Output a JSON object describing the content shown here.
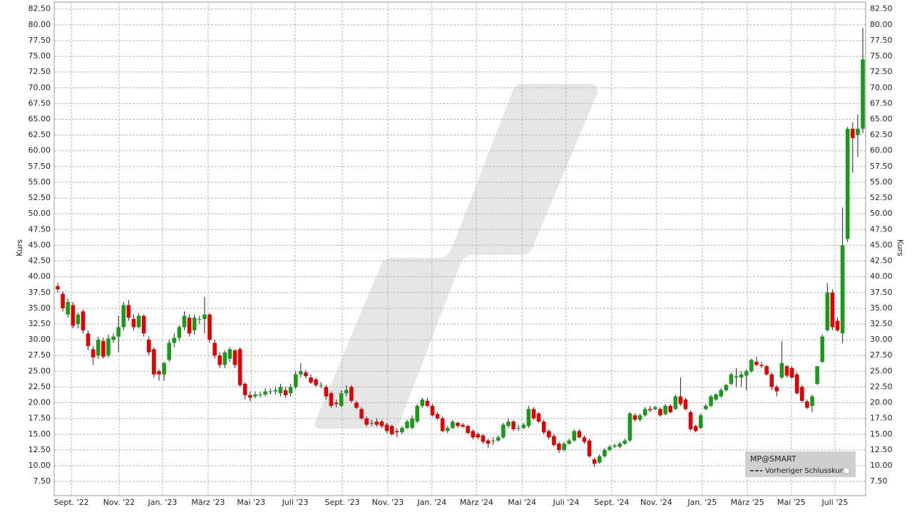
{
  "chart_data": {
    "type": "candlestick",
    "y_label": "Kurs",
    "y2_label": "Kurs",
    "legend": {
      "position": "lower right",
      "items": [
        "MP@SMART",
        "Vorheriger Schlusskurs"
      ]
    },
    "up_color": "#1a9a1a",
    "down_color": "#e00000",
    "grid": true,
    "xlim": [
      -0.7,
      159.56
    ],
    "xticks": [
      {
        "value": 2.7,
        "label": "Sept. '22"
      },
      {
        "value": 12.1,
        "label": "Nov. '22"
      },
      {
        "value": 20.7,
        "label": "Jan. '23"
      },
      {
        "value": 29.7,
        "label": "März '23"
      },
      {
        "value": 38.2,
        "label": "Mai '23"
      },
      {
        "value": 46.9,
        "label": "Juli '23"
      },
      {
        "value": 56.2,
        "label": "Sept. '23"
      },
      {
        "value": 65.2,
        "label": "Nov. '23"
      },
      {
        "value": 73.9,
        "label": "Jan. '24"
      },
      {
        "value": 82.7,
        "label": "März '24"
      },
      {
        "value": 91.7,
        "label": "Mai '24"
      },
      {
        "value": 100.4,
        "label": "Juli '24"
      },
      {
        "value": 109.4,
        "label": "Sept. '24"
      },
      {
        "value": 118.2,
        "label": "Nov. '24"
      },
      {
        "value": 127.3,
        "label": "Jan. '25"
      },
      {
        "value": 136.2,
        "label": "März '25"
      },
      {
        "value": 144.9,
        "label": "Mai '25"
      },
      {
        "value": 153.5,
        "label": "Juli '25"
      }
    ],
    "ylim": [
      5.25,
      83.6
    ],
    "yticks": [
      {
        "value": 7.5,
        "label": "7.50"
      },
      {
        "value": 10,
        "label": "10.00"
      },
      {
        "value": 12.5,
        "label": "12.50"
      },
      {
        "value": 15,
        "label": "15.00"
      },
      {
        "value": 17.5,
        "label": "17.50"
      },
      {
        "value": 20,
        "label": "20.00"
      },
      {
        "value": 22.5,
        "label": "22.50"
      },
      {
        "value": 25,
        "label": "25.00"
      },
      {
        "value": 27.5,
        "label": "27.50"
      },
      {
        "value": 30,
        "label": "30.00"
      },
      {
        "value": 32.5,
        "label": "32.50"
      },
      {
        "value": 35,
        "label": "35.00"
      },
      {
        "value": 37.5,
        "label": "37.50"
      },
      {
        "value": 40,
        "label": "40.00"
      },
      {
        "value": 42.5,
        "label": "42.50"
      },
      {
        "value": 45,
        "label": "45.00"
      },
      {
        "value": 47.5,
        "label": "47.50"
      },
      {
        "value": 50,
        "label": "50.00"
      },
      {
        "value": 52.5,
        "label": "52.50"
      },
      {
        "value": 55,
        "label": "55.00"
      },
      {
        "value": 57.5,
        "label": "57.50"
      },
      {
        "value": 60,
        "label": "60.00"
      },
      {
        "value": 62.5,
        "label": "62.50"
      },
      {
        "value": 65,
        "label": "65.00"
      },
      {
        "value": 67.5,
        "label": "67.50"
      },
      {
        "value": 70,
        "label": "70.00"
      },
      {
        "value": 72.5,
        "label": "72.50"
      },
      {
        "value": 75,
        "label": "75.00"
      },
      {
        "value": 77.5,
        "label": "77.50"
      },
      {
        "value": 80,
        "label": "80.00"
      },
      {
        "value": 82.5,
        "label": "82.50"
      }
    ],
    "ohlc": [
      [
        38.5,
        39,
        37.5,
        38
      ],
      [
        37.3,
        37.7,
        34.5,
        35
      ],
      [
        34,
        36.5,
        33.5,
        36
      ],
      [
        35.5,
        36,
        31.8,
        32.2
      ],
      [
        32.5,
        34.3,
        31.8,
        34
      ],
      [
        34.5,
        34.8,
        31,
        31.5
      ],
      [
        31,
        31.5,
        28.3,
        29
      ],
      [
        28.5,
        29,
        26,
        27.2
      ],
      [
        27.5,
        30.5,
        27,
        30
      ],
      [
        29.8,
        30.3,
        27,
        27.3
      ],
      [
        27.5,
        30.8,
        27.2,
        30.2
      ],
      [
        30,
        31,
        29.5,
        30.5
      ],
      [
        30.5,
        33.8,
        28,
        32
      ],
      [
        32,
        36,
        31.5,
        35.5
      ],
      [
        35.5,
        36.3,
        33,
        33.5
      ],
      [
        33.3,
        34,
        31.5,
        32
      ],
      [
        32,
        34.2,
        31.8,
        33.8
      ],
      [
        33.8,
        34,
        30.5,
        31
      ],
      [
        30,
        30.5,
        27.5,
        28
      ],
      [
        28.5,
        28.8,
        24,
        24.5
      ],
      [
        25,
        25.3,
        23.5,
        24.5
      ],
      [
        24.5,
        26.5,
        23.5,
        26.3
      ],
      [
        26.8,
        30,
        26.5,
        29.5
      ],
      [
        29.5,
        31,
        28.8,
        30.3
      ],
      [
        30.3,
        32.3,
        29.8,
        32
      ],
      [
        32,
        34.5,
        31.5,
        33.8
      ],
      [
        33.5,
        34,
        30.5,
        31
      ],
      [
        31.5,
        34,
        30.8,
        33.5
      ],
      [
        33.3,
        33.8,
        32.5,
        33.3
      ],
      [
        33.3,
        36.8,
        31,
        34
      ],
      [
        34,
        34.2,
        29.5,
        30
      ],
      [
        29.5,
        30,
        27,
        27.5
      ],
      [
        27.5,
        28,
        25.5,
        26
      ],
      [
        26,
        28.3,
        25.5,
        28
      ],
      [
        27,
        28.8,
        26.5,
        28.5
      ],
      [
        28.3,
        28.5,
        25.5,
        26
      ],
      [
        28.5,
        28.8,
        22.5,
        22.8
      ],
      [
        23,
        23.3,
        20.5,
        21.2
      ],
      [
        21.2,
        21.8,
        20.2,
        20.8
      ],
      [
        21,
        21.8,
        20.7,
        21.3
      ],
      [
        21.3,
        21.8,
        20.8,
        21.3
      ],
      [
        21.3,
        22.3,
        21,
        21.8
      ],
      [
        21.8,
        22.3,
        21.3,
        21.8
      ],
      [
        21.8,
        22.5,
        21.3,
        22
      ],
      [
        21.5,
        23,
        21,
        22.5
      ],
      [
        22,
        22.5,
        20.8,
        21.2
      ],
      [
        21.5,
        23,
        21,
        22.5
      ],
      [
        22.5,
        25,
        22.2,
        24.5
      ],
      [
        24.5,
        26.3,
        24,
        25
      ],
      [
        24.8,
        25.2,
        23.8,
        24.2
      ],
      [
        24,
        24.5,
        23,
        23.2
      ],
      [
        23.7,
        24,
        22.5,
        22.8
      ],
      [
        22.8,
        23.3,
        22.3,
        22.8
      ],
      [
        22.5,
        22.8,
        20.5,
        21
      ],
      [
        21.5,
        21.8,
        19.2,
        19.5
      ],
      [
        20,
        20.5,
        19.3,
        19.8
      ],
      [
        19.5,
        22,
        19.3,
        21.5
      ],
      [
        21.5,
        22.8,
        21,
        22
      ],
      [
        22.5,
        22.8,
        20,
        20.3
      ],
      [
        20,
        20.3,
        19,
        19.2
      ],
      [
        19,
        19.3,
        17.3,
        17.5
      ],
      [
        17.5,
        17.8,
        16.2,
        16.5
      ],
      [
        16.8,
        17.3,
        16.3,
        16.8
      ],
      [
        17,
        17.5,
        16.2,
        16.5
      ],
      [
        17,
        17.3,
        16,
        16.3
      ],
      [
        16.5,
        16.8,
        15.2,
        15.5
      ],
      [
        16.3,
        16.5,
        14.8,
        15
      ],
      [
        15.5,
        16,
        14.5,
        15.3
      ],
      [
        15.3,
        16.3,
        15,
        16
      ],
      [
        16,
        17.3,
        15.8,
        17
      ],
      [
        16,
        18,
        15.8,
        17.5
      ],
      [
        17,
        19.8,
        16.8,
        19.5
      ],
      [
        19.5,
        20.8,
        19.2,
        20.5
      ],
      [
        20.3,
        20.8,
        19.3,
        19.5
      ],
      [
        19.5,
        19.8,
        17.8,
        18
      ],
      [
        18.2,
        18.5,
        17.3,
        17.5
      ],
      [
        17.5,
        17.8,
        15.3,
        15.5
      ],
      [
        15.5,
        16.3,
        15.2,
        16
      ],
      [
        16,
        17.3,
        15.8,
        17
      ],
      [
        16.8,
        17,
        16,
        16.3
      ],
      [
        16.5,
        16.8,
        16,
        16.2
      ],
      [
        16.3,
        16.5,
        15,
        15.2
      ],
      [
        15.5,
        15.8,
        14.2,
        14.5
      ],
      [
        15,
        15.3,
        14.2,
        14.5
      ],
      [
        14.8,
        15,
        13.5,
        13.8
      ],
      [
        14,
        14.3,
        12.8,
        13.5
      ],
      [
        14,
        14.5,
        13.3,
        14
      ],
      [
        14,
        14.8,
        13.8,
        14.5
      ],
      [
        14.5,
        16.8,
        14.3,
        16.5
      ],
      [
        16.3,
        17.5,
        16,
        17
      ],
      [
        17,
        17.3,
        15.5,
        15.8
      ],
      [
        16,
        16.5,
        15.5,
        16
      ],
      [
        16,
        16.8,
        15.8,
        16.5
      ],
      [
        16.3,
        19.5,
        16,
        19
      ],
      [
        19,
        19.3,
        17.3,
        17.5
      ],
      [
        18.3,
        18.5,
        16.8,
        17
      ],
      [
        17,
        17.3,
        15,
        15.3
      ],
      [
        15.5,
        15.8,
        14.2,
        14.5
      ],
      [
        14.7,
        15,
        13,
        13.3
      ],
      [
        13.5,
        13.8,
        12,
        12.5
      ],
      [
        12.5,
        13.8,
        12.3,
        13.5
      ],
      [
        13.5,
        14.3,
        13.3,
        14
      ],
      [
        14,
        15.8,
        13.8,
        15.5
      ],
      [
        15.5,
        15.8,
        14.3,
        14.5
      ],
      [
        14.5,
        14.8,
        13.5,
        13.8
      ],
      [
        14,
        14.3,
        11.3,
        11.5
      ],
      [
        11,
        11.3,
        9.8,
        10.3
      ],
      [
        10.5,
        11.8,
        10.3,
        11.5
      ],
      [
        11.5,
        12.8,
        11.3,
        12.5
      ],
      [
        12.5,
        13.3,
        12.3,
        13
      ],
      [
        13,
        13.5,
        12.8,
        13.2
      ],
      [
        13,
        13.8,
        12.8,
        13.5
      ],
      [
        13.5,
        14.3,
        13.3,
        14
      ],
      [
        14,
        18.5,
        13.8,
        18.3
      ],
      [
        18,
        18.3,
        17,
        17.3
      ],
      [
        17.3,
        18.3,
        17,
        18
      ],
      [
        18,
        19.3,
        17.8,
        19
      ],
      [
        19,
        19.5,
        18.5,
        18.8
      ],
      [
        19,
        19.5,
        18.8,
        19.3
      ],
      [
        19,
        19.3,
        17.8,
        18
      ],
      [
        18.2,
        19.8,
        18,
        19.5
      ],
      [
        19.5,
        19.8,
        18.3,
        18.5
      ],
      [
        19,
        21.3,
        18.8,
        21
      ],
      [
        21,
        24,
        19.5,
        19.8
      ],
      [
        20.5,
        20.8,
        18.8,
        19
      ],
      [
        18.5,
        18.8,
        15.5,
        15.8
      ],
      [
        16.3,
        16.5,
        15.3,
        15.5
      ],
      [
        16,
        18.3,
        15.8,
        18
      ],
      [
        19,
        19.8,
        18.8,
        19.5
      ],
      [
        19.5,
        21.3,
        19.3,
        21
      ],
      [
        20.5,
        21.5,
        20.3,
        21.3
      ],
      [
        21,
        22.3,
        20.8,
        22
      ],
      [
        22,
        23,
        21.8,
        22.8
      ],
      [
        23,
        24.8,
        22.8,
        24.5
      ],
      [
        24,
        25.5,
        22.5,
        24.2
      ],
      [
        24,
        25,
        22.5,
        24.5
      ],
      [
        24.3,
        25.3,
        22,
        25
      ],
      [
        25,
        27,
        24.8,
        26.8
      ],
      [
        26.5,
        27.3,
        25.8,
        26
      ],
      [
        26,
        26.5,
        25.5,
        25.8
      ],
      [
        25.8,
        26,
        24.3,
        24.5
      ],
      [
        24.5,
        24.8,
        22,
        22.5
      ],
      [
        22.5,
        22.8,
        21,
        21.8
      ],
      [
        24,
        29.8,
        23.8,
        26.3
      ],
      [
        25.8,
        26,
        24,
        24.3
      ],
      [
        25.5,
        25.8,
        23.8,
        24
      ],
      [
        24.5,
        24.8,
        21.3,
        21.5
      ],
      [
        22.5,
        22.8,
        20,
        20.3
      ],
      [
        20.2,
        20.5,
        19,
        19.2
      ],
      [
        19.5,
        21.3,
        18.5,
        21
      ],
      [
        23,
        25.8,
        22.8,
        25.8
      ],
      [
        26.5,
        30.8,
        26.3,
        30.5
      ],
      [
        31.5,
        39,
        31.3,
        37.5
      ],
      [
        37.5,
        38,
        31.5,
        32
      ],
      [
        33,
        33.5,
        31.3,
        31.5
      ],
      [
        31,
        51,
        29.5,
        45
      ],
      [
        46,
        63.8,
        45.5,
        63.5
      ],
      [
        63.5,
        64.5,
        56.5,
        62
      ],
      [
        62.5,
        65.8,
        59,
        63.5
      ],
      [
        63.5,
        79.5,
        62.8,
        74.5
      ]
    ]
  }
}
